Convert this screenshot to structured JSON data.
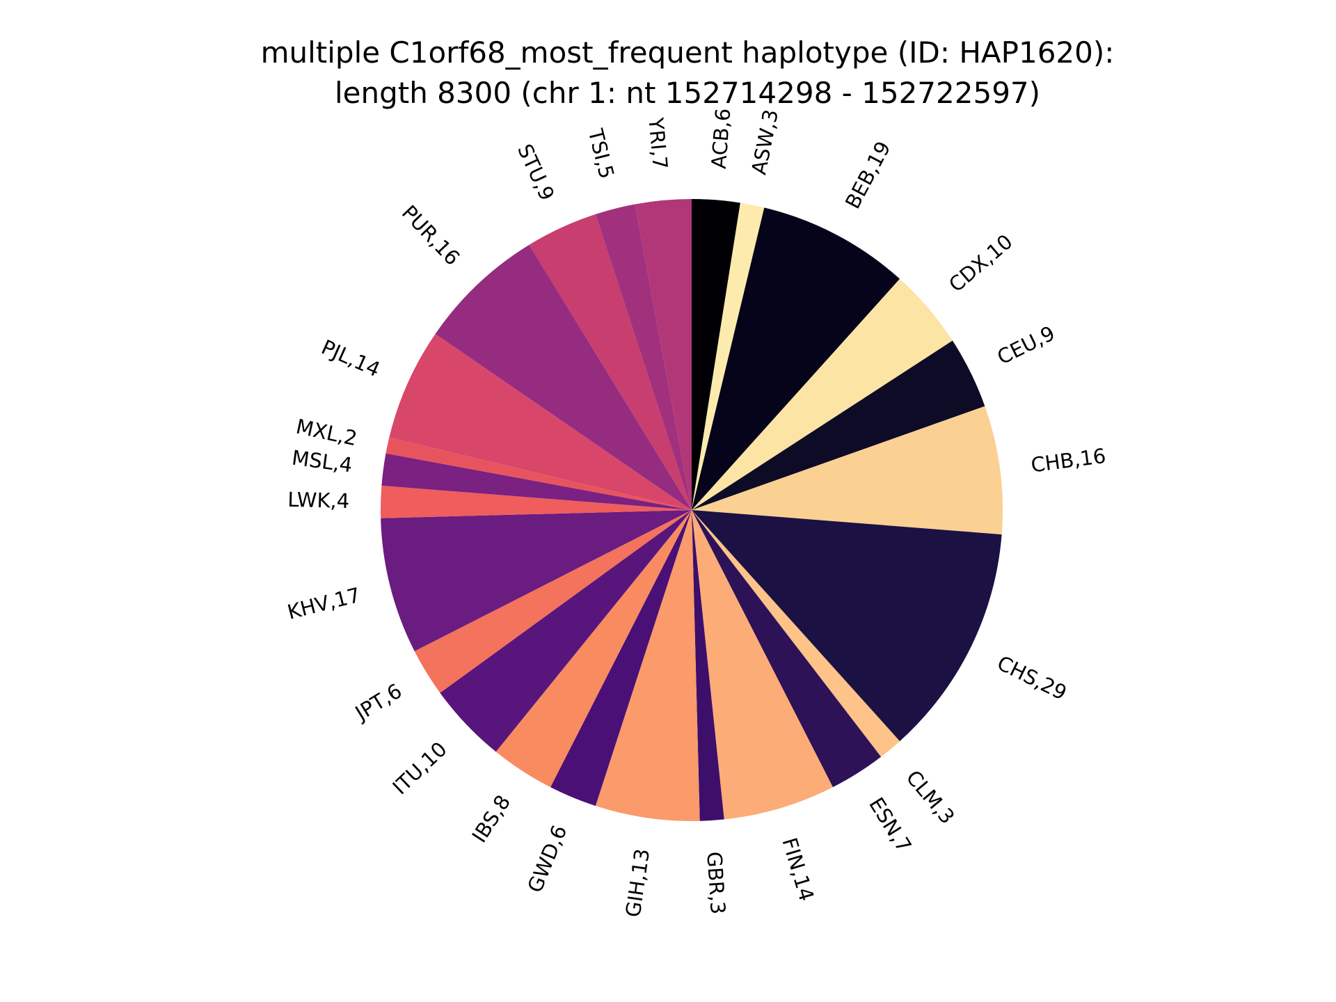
{
  "chart_data": {
    "type": "pie",
    "title_line1": "multiple C1orf68_most_frequent haplotype (ID: HAP1620):",
    "title_line2": "length 8300 (chr 1: nt 152714298 - 152722597)",
    "start_angle_deg": 90,
    "direction": "clockwise",
    "slices": [
      {
        "label": "ACB,6",
        "name": "ACB",
        "value": 6,
        "color": "#000004"
      },
      {
        "label": "ASW,3",
        "name": "ASW",
        "value": 3,
        "color": "#fcebac"
      },
      {
        "label": "BEB,19",
        "name": "BEB",
        "value": 19,
        "color": "#05041a"
      },
      {
        "label": "CDX,10",
        "name": "CDX",
        "value": 10,
        "color": "#fce4a4"
      },
      {
        "label": "CEU,9",
        "name": "CEU",
        "value": 9,
        "color": "#0e0b26"
      },
      {
        "label": "CHB,16",
        "name": "CHB",
        "value": 16,
        "color": "#fbd093"
      },
      {
        "label": "CHS,29",
        "name": "CHS",
        "value": 29,
        "color": "#1c1143"
      },
      {
        "label": "CLM,3",
        "name": "CLM",
        "value": 3,
        "color": "#fdc388"
      },
      {
        "label": "ESN,7",
        "name": "ESN",
        "value": 7,
        "color": "#2e1258"
      },
      {
        "label": "FIN,14",
        "name": "FIN",
        "value": 14,
        "color": "#fcac77"
      },
      {
        "label": "GBR,3",
        "name": "GBR",
        "value": 3,
        "color": "#3d0f6b"
      },
      {
        "label": "GIH,13",
        "name": "GIH",
        "value": 13,
        "color": "#fb9a6a"
      },
      {
        "label": "GWD,6",
        "name": "GWD",
        "value": 6,
        "color": "#4a1075"
      },
      {
        "label": "IBS,8",
        "name": "IBS",
        "value": 8,
        "color": "#f98b60"
      },
      {
        "label": "ITU,10",
        "name": "ITU",
        "value": 10,
        "color": "#58157c"
      },
      {
        "label": "JPT,6",
        "name": "JPT",
        "value": 6,
        "color": "#f4735c"
      },
      {
        "label": "KHV,17",
        "name": "KHV",
        "value": 17,
        "color": "#6a1c80"
      },
      {
        "label": "LWK,4",
        "name": "LWK",
        "value": 4,
        "color": "#f05d5d"
      },
      {
        "label": "MSL,4",
        "name": "MSL",
        "value": 4,
        "color": "#7a2181"
      },
      {
        "label": "MXL,2",
        "name": "MXL",
        "value": 2,
        "color": "#e8545e"
      },
      {
        "label": "PJL,14",
        "name": "PJL",
        "value": 14,
        "color": "#d8466a"
      },
      {
        "label": "PUR,16",
        "name": "PUR",
        "value": 16,
        "color": "#952c80"
      },
      {
        "label": "STU,9",
        "name": "STU",
        "value": 9,
        "color": "#c73e6f"
      },
      {
        "label": "TSI,5",
        "name": "TSI",
        "value": 5,
        "color": "#a2317d"
      },
      {
        "label": "YRI,7",
        "name": "YRI",
        "value": 7,
        "color": "#b13778"
      }
    ]
  }
}
